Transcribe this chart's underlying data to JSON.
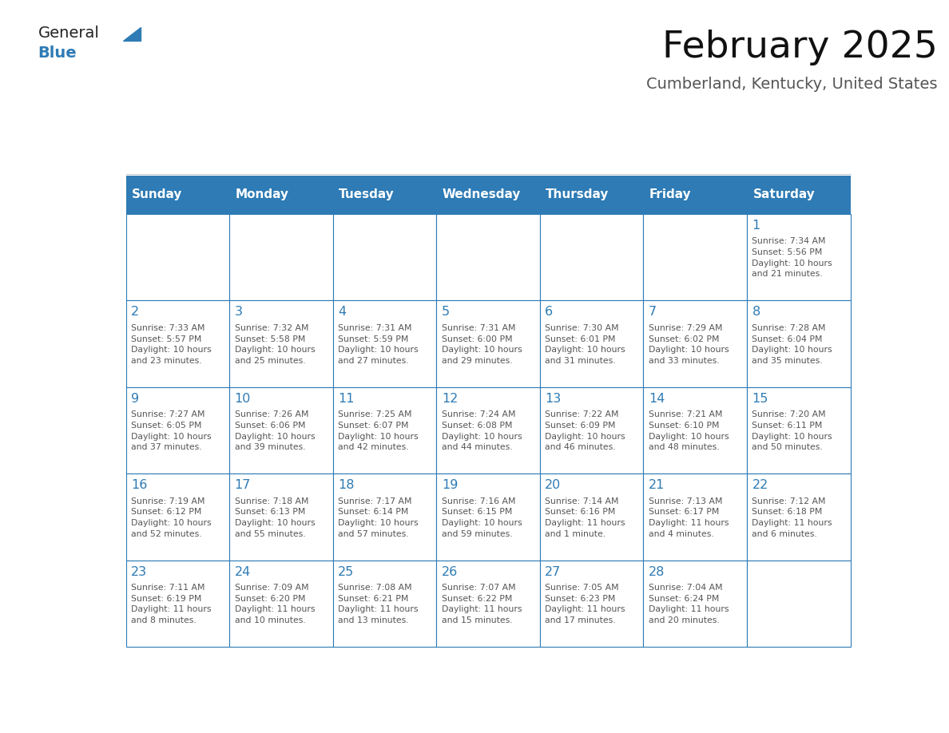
{
  "title": "February 2025",
  "subtitle": "Cumberland, Kentucky, United States",
  "header_bg": "#2E7BB5",
  "header_text_color": "#FFFFFF",
  "cell_border_color": "#2E7BB5",
  "day_headers": [
    "Sunday",
    "Monday",
    "Tuesday",
    "Wednesday",
    "Thursday",
    "Friday",
    "Saturday"
  ],
  "days": [
    {
      "day": 1,
      "col": 6,
      "row": 0,
      "sunrise": "7:34 AM",
      "sunset": "5:56 PM",
      "daylight": "10 hours\nand 21 minutes."
    },
    {
      "day": 2,
      "col": 0,
      "row": 1,
      "sunrise": "7:33 AM",
      "sunset": "5:57 PM",
      "daylight": "10 hours\nand 23 minutes."
    },
    {
      "day": 3,
      "col": 1,
      "row": 1,
      "sunrise": "7:32 AM",
      "sunset": "5:58 PM",
      "daylight": "10 hours\nand 25 minutes."
    },
    {
      "day": 4,
      "col": 2,
      "row": 1,
      "sunrise": "7:31 AM",
      "sunset": "5:59 PM",
      "daylight": "10 hours\nand 27 minutes."
    },
    {
      "day": 5,
      "col": 3,
      "row": 1,
      "sunrise": "7:31 AM",
      "sunset": "6:00 PM",
      "daylight": "10 hours\nand 29 minutes."
    },
    {
      "day": 6,
      "col": 4,
      "row": 1,
      "sunrise": "7:30 AM",
      "sunset": "6:01 PM",
      "daylight": "10 hours\nand 31 minutes."
    },
    {
      "day": 7,
      "col": 5,
      "row": 1,
      "sunrise": "7:29 AM",
      "sunset": "6:02 PM",
      "daylight": "10 hours\nand 33 minutes."
    },
    {
      "day": 8,
      "col": 6,
      "row": 1,
      "sunrise": "7:28 AM",
      "sunset": "6:04 PM",
      "daylight": "10 hours\nand 35 minutes."
    },
    {
      "day": 9,
      "col": 0,
      "row": 2,
      "sunrise": "7:27 AM",
      "sunset": "6:05 PM",
      "daylight": "10 hours\nand 37 minutes."
    },
    {
      "day": 10,
      "col": 1,
      "row": 2,
      "sunrise": "7:26 AM",
      "sunset": "6:06 PM",
      "daylight": "10 hours\nand 39 minutes."
    },
    {
      "day": 11,
      "col": 2,
      "row": 2,
      "sunrise": "7:25 AM",
      "sunset": "6:07 PM",
      "daylight": "10 hours\nand 42 minutes."
    },
    {
      "day": 12,
      "col": 3,
      "row": 2,
      "sunrise": "7:24 AM",
      "sunset": "6:08 PM",
      "daylight": "10 hours\nand 44 minutes."
    },
    {
      "day": 13,
      "col": 4,
      "row": 2,
      "sunrise": "7:22 AM",
      "sunset": "6:09 PM",
      "daylight": "10 hours\nand 46 minutes."
    },
    {
      "day": 14,
      "col": 5,
      "row": 2,
      "sunrise": "7:21 AM",
      "sunset": "6:10 PM",
      "daylight": "10 hours\nand 48 minutes."
    },
    {
      "day": 15,
      "col": 6,
      "row": 2,
      "sunrise": "7:20 AM",
      "sunset": "6:11 PM",
      "daylight": "10 hours\nand 50 minutes."
    },
    {
      "day": 16,
      "col": 0,
      "row": 3,
      "sunrise": "7:19 AM",
      "sunset": "6:12 PM",
      "daylight": "10 hours\nand 52 minutes."
    },
    {
      "day": 17,
      "col": 1,
      "row": 3,
      "sunrise": "7:18 AM",
      "sunset": "6:13 PM",
      "daylight": "10 hours\nand 55 minutes."
    },
    {
      "day": 18,
      "col": 2,
      "row": 3,
      "sunrise": "7:17 AM",
      "sunset": "6:14 PM",
      "daylight": "10 hours\nand 57 minutes."
    },
    {
      "day": 19,
      "col": 3,
      "row": 3,
      "sunrise": "7:16 AM",
      "sunset": "6:15 PM",
      "daylight": "10 hours\nand 59 minutes."
    },
    {
      "day": 20,
      "col": 4,
      "row": 3,
      "sunrise": "7:14 AM",
      "sunset": "6:16 PM",
      "daylight": "11 hours\nand 1 minute."
    },
    {
      "day": 21,
      "col": 5,
      "row": 3,
      "sunrise": "7:13 AM",
      "sunset": "6:17 PM",
      "daylight": "11 hours\nand 4 minutes."
    },
    {
      "day": 22,
      "col": 6,
      "row": 3,
      "sunrise": "7:12 AM",
      "sunset": "6:18 PM",
      "daylight": "11 hours\nand 6 minutes."
    },
    {
      "day": 23,
      "col": 0,
      "row": 4,
      "sunrise": "7:11 AM",
      "sunset": "6:19 PM",
      "daylight": "11 hours\nand 8 minutes."
    },
    {
      "day": 24,
      "col": 1,
      "row": 4,
      "sunrise": "7:09 AM",
      "sunset": "6:20 PM",
      "daylight": "11 hours\nand 10 minutes."
    },
    {
      "day": 25,
      "col": 2,
      "row": 4,
      "sunrise": "7:08 AM",
      "sunset": "6:21 PM",
      "daylight": "11 hours\nand 13 minutes."
    },
    {
      "day": 26,
      "col": 3,
      "row": 4,
      "sunrise": "7:07 AM",
      "sunset": "6:22 PM",
      "daylight": "11 hours\nand 15 minutes."
    },
    {
      "day": 27,
      "col": 4,
      "row": 4,
      "sunrise": "7:05 AM",
      "sunset": "6:23 PM",
      "daylight": "11 hours\nand 17 minutes."
    },
    {
      "day": 28,
      "col": 5,
      "row": 4,
      "sunrise": "7:04 AM",
      "sunset": "6:24 PM",
      "daylight": "11 hours\nand 20 minutes."
    }
  ],
  "num_rows": 5,
  "num_cols": 7,
  "bg_color": "#FFFFFF",
  "text_color": "#555555",
  "day_number_color": "#2E7BB5",
  "logo_general_color": "#222222",
  "logo_blue_color": "#2E7BB5"
}
